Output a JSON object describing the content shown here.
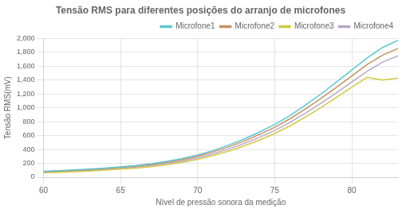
{
  "chart_data": {
    "type": "line",
    "title": "Tensão RMS para diferentes posições do arranjo de microfones",
    "x_label": "Nível de pressão sonora da medição",
    "y_label": "Tensão RMS(mV)",
    "x": [
      60,
      61,
      62,
      63,
      64,
      65,
      66,
      67,
      68,
      69,
      70,
      71,
      72,
      73,
      74,
      75,
      76,
      77,
      78,
      79,
      80,
      81,
      82,
      83
    ],
    "series": [
      {
        "name": "Microfone1",
        "color": "#5bc8d2",
        "values": [
          85,
          95,
          105,
          118,
          133,
          150,
          170,
          195,
          228,
          268,
          320,
          385,
          462,
          550,
          650,
          760,
          890,
          1040,
          1200,
          1370,
          1545,
          1720,
          1870,
          1975
        ]
      },
      {
        "name": "Microfone2",
        "color": "#c89060",
        "values": [
          80,
          89,
          99,
          111,
          125,
          142,
          160,
          184,
          215,
          253,
          303,
          365,
          437,
          520,
          615,
          720,
          845,
          985,
          1135,
          1295,
          1460,
          1625,
          1760,
          1855
        ]
      },
      {
        "name": "Microfone3",
        "color": "#d4c840",
        "values": [
          65,
          72,
          80,
          90,
          102,
          116,
          132,
          153,
          180,
          214,
          258,
          312,
          375,
          450,
          535,
          630,
          742,
          868,
          1005,
          1150,
          1300,
          1440,
          1400,
          1430
        ]
      },
      {
        "name": "Microfone4",
        "color": "#b8a8c8",
        "values": [
          72,
          80,
          89,
          100,
          113,
          128,
          146,
          168,
          197,
          233,
          280,
          338,
          405,
          484,
          574,
          674,
          792,
          924,
          1066,
          1216,
          1372,
          1528,
          1660,
          1750
        ]
      }
    ],
    "xlim": [
      60,
      83
    ],
    "ylim": [
      0,
      2000
    ],
    "xticks": [
      60,
      65,
      70,
      75,
      80
    ],
    "yticks": [
      0,
      200,
      400,
      600,
      800,
      1000,
      1200,
      1400,
      1600,
      1800,
      2000
    ],
    "grid": true,
    "legend": "upper right"
  }
}
